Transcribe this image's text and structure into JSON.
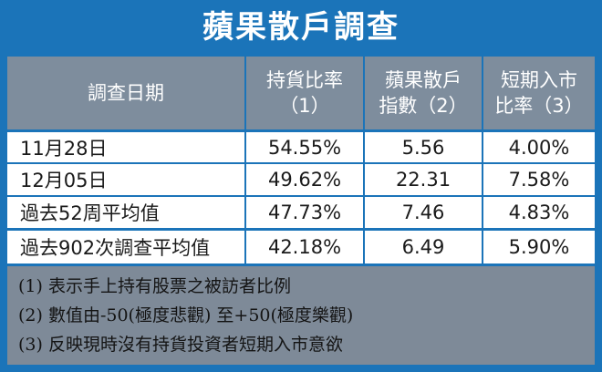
{
  "title": "蘋果散戶調查",
  "table": {
    "header": [
      [
        "調查日期"
      ],
      [
        "持貨比率",
        "（1）"
      ],
      [
        "蘋果散戶",
        "指數（2）"
      ],
      [
        "短期入市",
        "比率（3）"
      ]
    ],
    "rows": [
      [
        "11月28日",
        "54.55%",
        "5.56",
        "4.00%"
      ],
      [
        "12月05日",
        "49.62%",
        "22.31",
        "7.58%"
      ],
      [
        "過去52周平均值",
        "47.73%",
        "7.46",
        "4.83%"
      ],
      [
        "過去902次調查平均值",
        "42.18%",
        "6.49",
        "5.90%"
      ]
    ]
  },
  "notes": [
    "(1) 表示手上持有股票之被訪者比例",
    "(2) 數值由-50(極度悲觀) 至+50(極度樂觀)",
    "(3) 反映現時沒有持貨投資者短期入市意欲"
  ]
}
